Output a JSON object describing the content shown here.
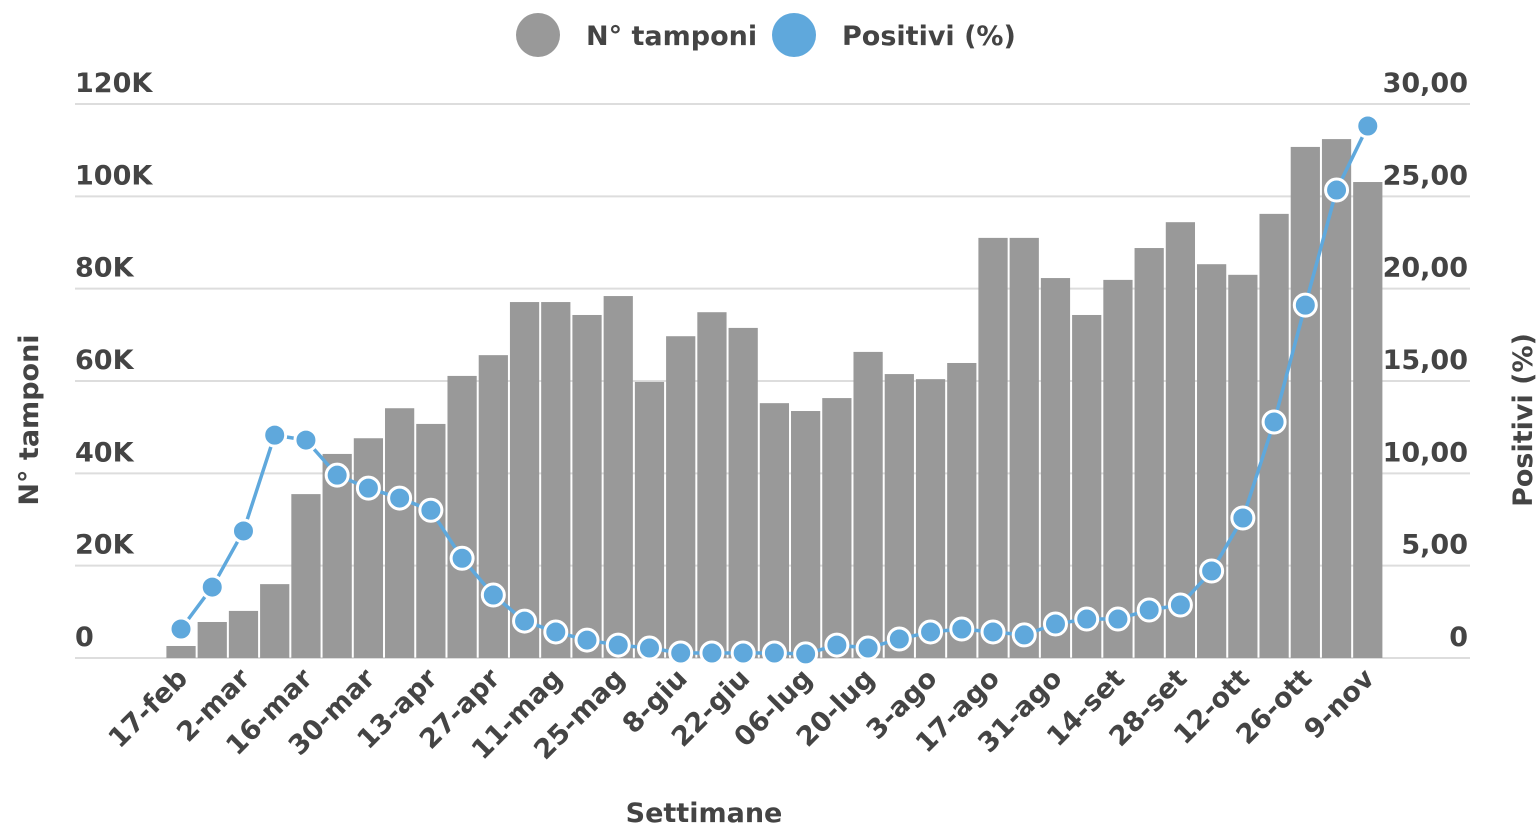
{
  "chart_data": {
    "type": "bar",
    "xlabel": "Settimane",
    "ylabel": "N° tamponi",
    "y2label": "Positivi (%)",
    "categories": [
      "17-feb",
      null,
      "2-mar",
      null,
      "16-mar",
      null,
      "30-mar",
      null,
      "13-apr",
      null,
      "27-apr",
      null,
      "11-mag",
      null,
      "25-mag",
      null,
      "8-giu",
      null,
      "22-giu",
      null,
      "06-lug",
      null,
      "20-lug",
      null,
      "3-ago",
      null,
      "17-ago",
      null,
      "31-ago",
      null,
      "14-set",
      null,
      "28-set",
      null,
      "12-ott",
      null,
      "26-ott",
      null,
      "9-nov"
    ],
    "series": [
      {
        "name": "N° tamponi",
        "type": "bar",
        "color": "#999999",
        "values": [
          2600,
          7800,
          10200,
          16000,
          35500,
          44200,
          47600,
          54100,
          50700,
          61100,
          65600,
          77100,
          77100,
          74300,
          78400,
          59800,
          69700,
          74900,
          71500,
          55200,
          53500,
          56300,
          66300,
          61500,
          60400,
          63900,
          91000,
          91000,
          82300,
          74300,
          81900,
          88800,
          94400,
          85300,
          83000,
          96200,
          110700,
          112400,
          103100
        ]
      },
      {
        "name": "Positivi (%)",
        "type": "line",
        "axis": "y2",
        "color": "#5fa8dc",
        "values": [
          1.57,
          3.84,
          6.88,
          12.07,
          11.8,
          9.9,
          9.2,
          8.66,
          8.0,
          5.4,
          3.41,
          2.0,
          1.41,
          0.97,
          0.7,
          0.54,
          0.27,
          0.27,
          0.27,
          0.27,
          0.22,
          0.7,
          0.54,
          1.03,
          1.41,
          1.57,
          1.41,
          1.25,
          1.84,
          2.11,
          2.11,
          2.6,
          2.87,
          4.71,
          7.58,
          12.78,
          19.11,
          25.34,
          28.81
        ]
      }
    ],
    "ylim": [
      0,
      120000
    ],
    "yticks": [
      0,
      {
        "value": 20000,
        "label": "20K"
      },
      {
        "value": 40000,
        "label": "40K"
      },
      {
        "value": 60000,
        "label": "60K"
      },
      {
        "value": 80000,
        "label": "80K"
      },
      {
        "value": 100000,
        "label": "100K"
      },
      {
        "value": 120000,
        "label": "120K"
      }
    ],
    "y2lim": [
      0,
      30
    ],
    "y2ticks": [
      0,
      {
        "value": 5,
        "label": "5,00"
      },
      {
        "value": 10,
        "label": "10,00"
      },
      {
        "value": 15,
        "label": "15,00"
      },
      {
        "value": 20,
        "label": "20,00"
      },
      {
        "value": 25,
        "label": "25,00"
      },
      {
        "value": 30,
        "label": "30,00"
      }
    ],
    "grid": true,
    "legend": "top"
  }
}
